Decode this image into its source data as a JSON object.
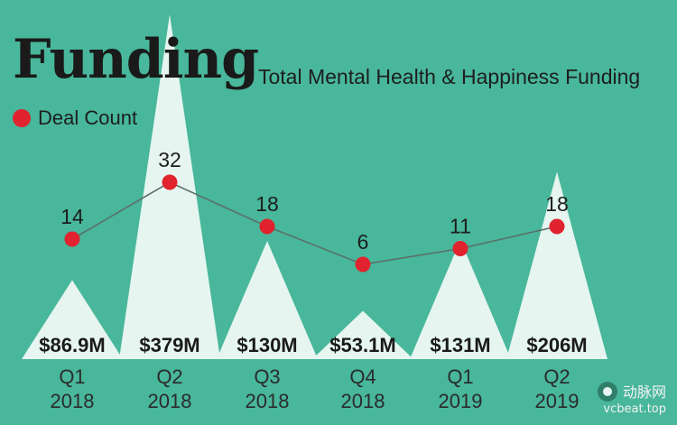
{
  "header": {
    "title": "Funding",
    "subtitle": "Total Mental Health & Happiness Funding",
    "legend_label": "Deal Count"
  },
  "watermark": {
    "brand": "动脉网",
    "site": "vcbeat.top"
  },
  "colors": {
    "background": "#48b79b",
    "peak": "#e6f5f0",
    "dot": "#e0232e",
    "line": "#5b6f69",
    "text": "#1e1e1e"
  },
  "chart_data": {
    "type": "area",
    "title": "Funding",
    "subtitle": "Total Mental Health & Happiness Funding",
    "categories": [
      {
        "quarter": "Q1",
        "year": "2018"
      },
      {
        "quarter": "Q2",
        "year": "2018"
      },
      {
        "quarter": "Q3",
        "year": "2018"
      },
      {
        "quarter": "Q4",
        "year": "2018"
      },
      {
        "quarter": "Q1",
        "year": "2019"
      },
      {
        "quarter": "Q2",
        "year": "2019"
      }
    ],
    "series": [
      {
        "name": "Total Mental Health & Happiness Funding",
        "unit": "$M",
        "values": [
          86.9,
          379,
          130,
          53.1,
          131,
          206
        ],
        "labels": [
          "$86.9M",
          "$379M",
          "$130M",
          "$53.1M",
          "$131M",
          "$206M"
        ]
      },
      {
        "name": "Deal Count",
        "values": [
          14,
          32,
          18,
          6,
          11,
          18
        ]
      }
    ]
  }
}
